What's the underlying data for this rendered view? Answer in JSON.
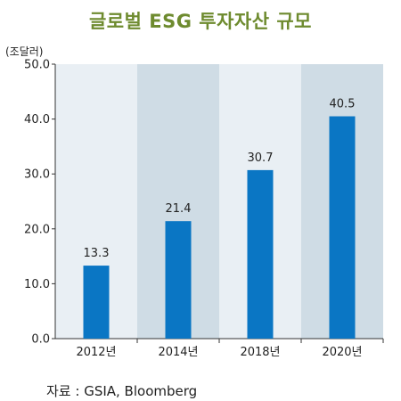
{
  "chart_data": {
    "type": "bar",
    "title": "글로벌 ESG 투자자산 규모",
    "unit_label": "(조달러)",
    "categories": [
      "2012년",
      "2014년",
      "2018년",
      "2020년"
    ],
    "values": [
      13.3,
      21.4,
      30.7,
      40.5
    ],
    "value_labels": [
      "13.3",
      "21.4",
      "30.7",
      "40.5"
    ],
    "y_ticks": [
      "0.0",
      "10.0",
      "20.0",
      "30.0",
      "40.0",
      "50.0"
    ],
    "ylim": [
      0,
      50
    ],
    "xlabel": "",
    "ylabel": "",
    "grid": false,
    "bar_color": "#0a76c4",
    "band_colors": [
      "#e9eff4",
      "#cfdce5"
    ],
    "source": "자료 : GSIA, Bloomberg"
  }
}
